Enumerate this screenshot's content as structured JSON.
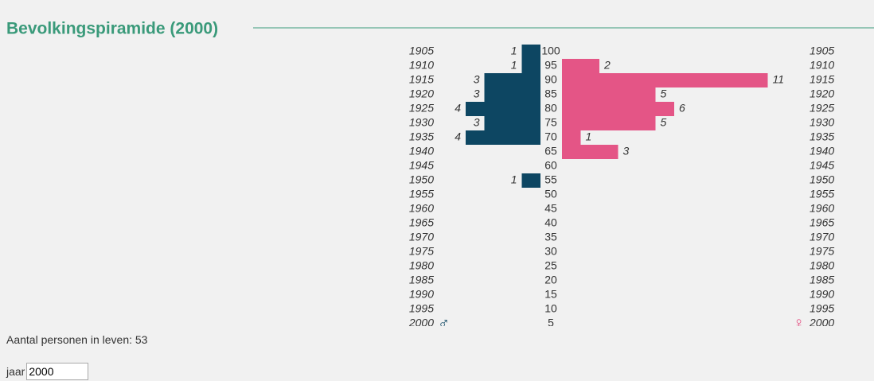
{
  "chart_data": {
    "type": "pyramid",
    "title": "Bevolkingspiramide (2000)",
    "categories": [
      100,
      95,
      90,
      85,
      80,
      75,
      70,
      65,
      60,
      55,
      50,
      45,
      40,
      35,
      30,
      25,
      20,
      15,
      10,
      5
    ],
    "birth_years": [
      1905,
      1910,
      1915,
      1920,
      1925,
      1930,
      1935,
      1940,
      1945,
      1950,
      1955,
      1960,
      1965,
      1970,
      1975,
      1980,
      1985,
      1990,
      1995,
      2000
    ],
    "series": [
      {
        "name": "♂",
        "color": "#0d4662",
        "values": [
          1,
          1,
          3,
          3,
          4,
          3,
          4,
          null,
          null,
          1,
          null,
          null,
          null,
          null,
          null,
          null,
          null,
          null,
          null,
          null
        ]
      },
      {
        "name": "♀",
        "color": "#e45586",
        "values": [
          null,
          2,
          11,
          5,
          6,
          5,
          1,
          3,
          null,
          null,
          null,
          null,
          null,
          null,
          null,
          null,
          null,
          null,
          null,
          null
        ]
      }
    ],
    "total_label": "Aantal personen in leven:",
    "total": 53,
    "year_label": "jaar",
    "year": 2000
  }
}
